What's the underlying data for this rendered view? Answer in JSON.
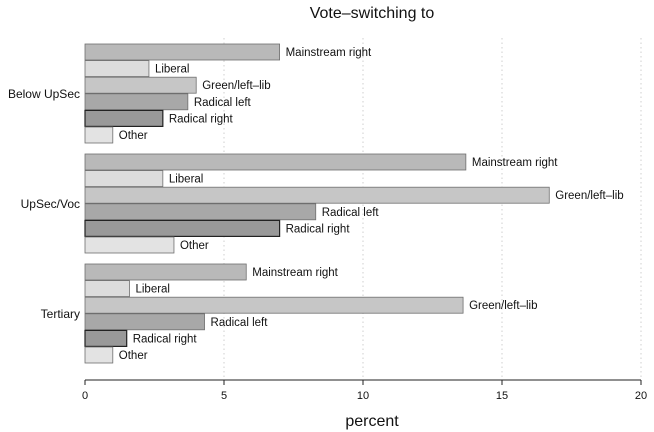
{
  "chart_data": {
    "type": "bar",
    "orientation": "horizontal",
    "title": "Vote–switching to",
    "xlabel": "percent",
    "ylabel": "",
    "xlim": [
      0,
      20
    ],
    "xticks": [
      0,
      5,
      10,
      15,
      20
    ],
    "grid": true,
    "groups": [
      "Below UpSec",
      "UpSec/Voc",
      "Tertiary"
    ],
    "series": [
      {
        "name": "Mainstream right",
        "color": "#b9b9b9",
        "values": [
          7.0,
          13.7,
          5.8
        ]
      },
      {
        "name": "Liberal",
        "color": "#dcdcdc",
        "values": [
          2.3,
          2.8,
          1.6
        ]
      },
      {
        "name": "Green/left–lib",
        "color": "#c6c6c6",
        "values": [
          4.0,
          16.7,
          13.6
        ]
      },
      {
        "name": "Radical left",
        "color": "#a8a8a8",
        "values": [
          3.7,
          8.3,
          4.3
        ]
      },
      {
        "name": "Radical right",
        "color": "#999999",
        "values": [
          2.8,
          7.0,
          1.5
        ]
      },
      {
        "name": "Other",
        "color": "#e3e3e3",
        "values": [
          1.0,
          3.2,
          1.0
        ]
      }
    ]
  }
}
